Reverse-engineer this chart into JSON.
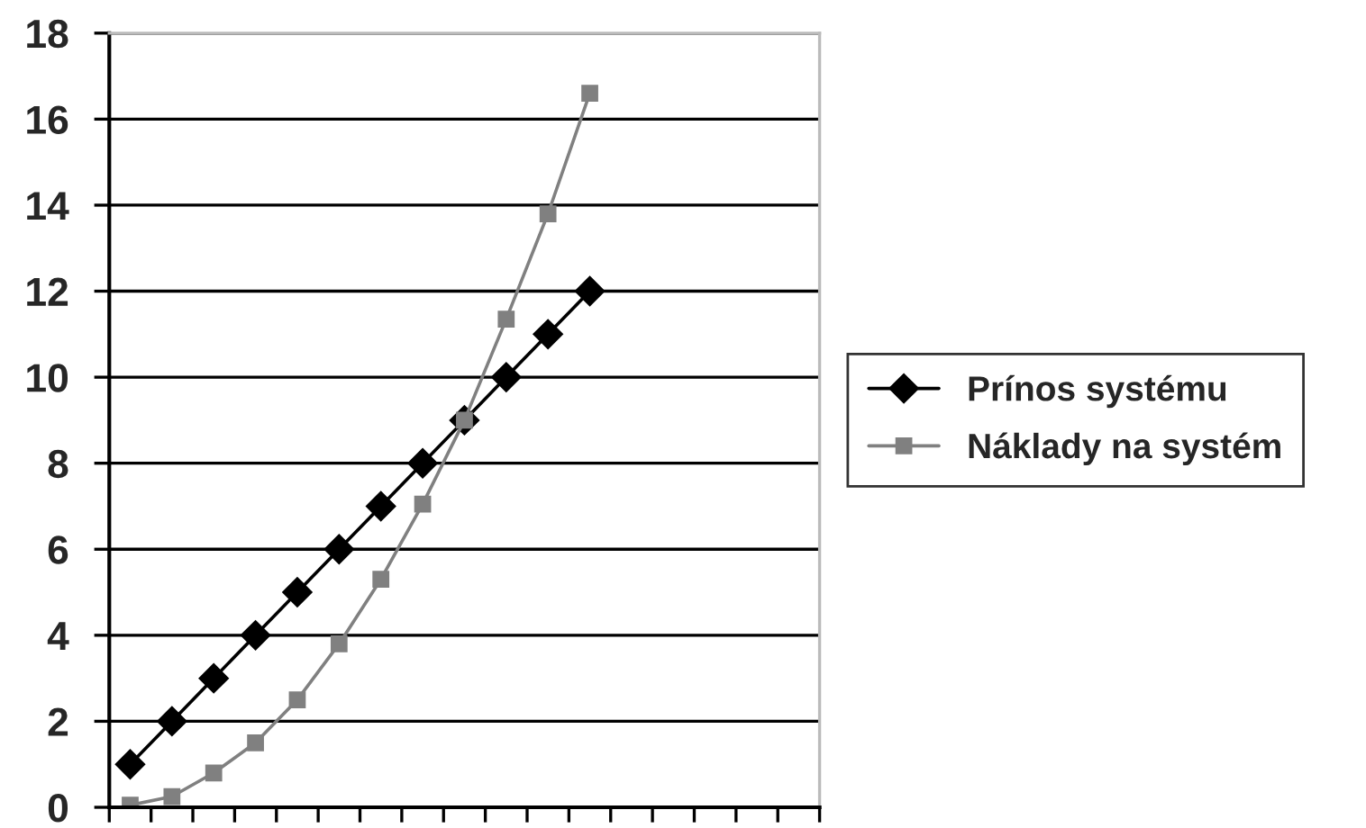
{
  "chart_data": {
    "type": "line",
    "categories": [
      null,
      null,
      null,
      null,
      null,
      null,
      null,
      null,
      null,
      null,
      null,
      null,
      null,
      null,
      null,
      null,
      null
    ],
    "series": [
      {
        "name": "Prínos systému",
        "color": "#000000",
        "marker": "diamond",
        "values": [
          1,
          2,
          3,
          4,
          5,
          6,
          7,
          8,
          9,
          10,
          11,
          12,
          null,
          null,
          null,
          null,
          null
        ]
      },
      {
        "name": "Náklady na systém",
        "color": "#808080",
        "marker": "square",
        "values": [
          0.05,
          0.25,
          0.8,
          1.5,
          2.5,
          3.8,
          5.3,
          7.05,
          9.0,
          11.35,
          13.8,
          16.6,
          null,
          null,
          null,
          null,
          null
        ]
      }
    ],
    "ylim": [
      0,
      18
    ],
    "yticks": [
      0,
      2,
      4,
      6,
      8,
      10,
      12,
      14,
      16,
      18
    ],
    "grid": "y",
    "legend": "right",
    "line_style": "solid"
  }
}
